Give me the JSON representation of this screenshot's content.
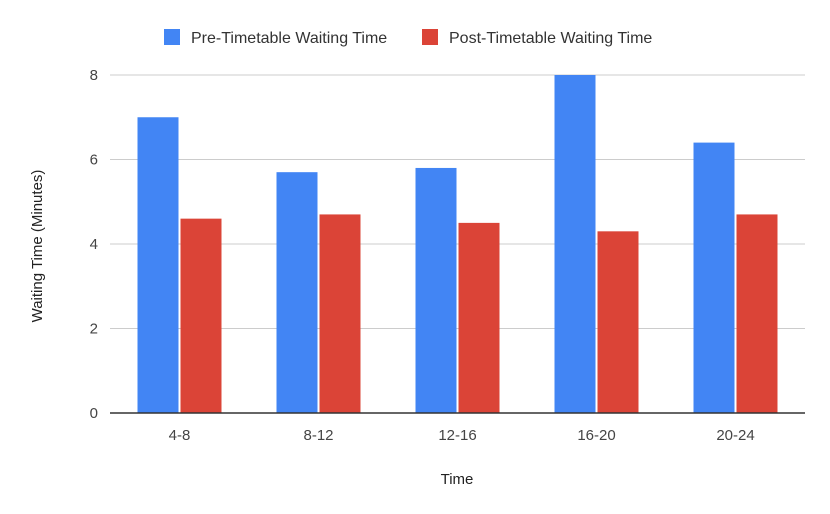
{
  "chart_data": {
    "type": "bar",
    "categories": [
      "4-8",
      "8-12",
      "12-16",
      "16-20",
      "20-24"
    ],
    "series": [
      {
        "name": "Pre-Timetable Waiting Time",
        "color": "#4285f4",
        "values": [
          7.0,
          5.7,
          5.8,
          8.0,
          6.4
        ]
      },
      {
        "name": "Post-Timetable Waiting Time",
        "color": "#db4437",
        "values": [
          4.6,
          4.7,
          4.5,
          4.3,
          4.7
        ]
      }
    ],
    "xlabel": "Time",
    "ylabel": "Waiting Time (Minutes)",
    "ylim": [
      0,
      8
    ],
    "yticks": [
      0,
      2,
      4,
      6,
      8
    ],
    "grid": true,
    "legend_position": "top"
  }
}
